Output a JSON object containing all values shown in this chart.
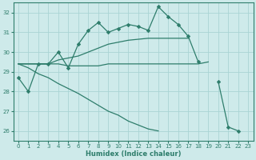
{
  "xlabel": "Humidex (Indice chaleur)",
  "x": [
    0,
    1,
    2,
    3,
    4,
    5,
    6,
    7,
    8,
    9,
    10,
    11,
    12,
    13,
    14,
    15,
    16,
    17,
    18,
    19,
    20,
    21,
    22,
    23
  ],
  "line1": [
    28.7,
    28.0,
    29.4,
    29.4,
    30.0,
    29.2,
    30.4,
    31.1,
    31.5,
    31.0,
    31.2,
    31.4,
    31.3,
    31.1,
    32.3,
    31.8,
    31.4,
    30.8,
    29.5,
    null,
    28.5,
    26.2,
    26.0,
    null
  ],
  "line2_flat": [
    29.4,
    29.4,
    29.4,
    29.4,
    29.4,
    29.3,
    29.3,
    29.3,
    29.3,
    29.4,
    29.4,
    29.4,
    29.4,
    29.4,
    29.4,
    29.4,
    29.4,
    29.4,
    29.4,
    29.5,
    null,
    null,
    null,
    null
  ],
  "line3_rising": [
    29.4,
    29.4,
    29.4,
    29.4,
    29.6,
    29.7,
    29.8,
    30.0,
    30.2,
    30.4,
    30.5,
    30.6,
    30.65,
    30.7,
    30.7,
    30.7,
    30.7,
    30.7,
    null,
    null,
    null,
    null,
    null,
    null
  ],
  "line4_diag": [
    29.4,
    29.2,
    28.9,
    28.7,
    28.4,
    28.15,
    27.9,
    27.6,
    27.3,
    27.0,
    26.8,
    26.5,
    26.3,
    26.1,
    26.0,
    null,
    null,
    null,
    null,
    null,
    null,
    null,
    null,
    null
  ],
  "line_color": "#2e7d6b",
  "bg_color": "#ceeaea",
  "grid_color": "#aad4d4",
  "ylim": [
    25.5,
    32.5
  ],
  "yticks": [
    26,
    27,
    28,
    29,
    30,
    31,
    32
  ],
  "xlim": [
    -0.5,
    23.5
  ],
  "xticks": [
    0,
    1,
    2,
    3,
    4,
    5,
    6,
    7,
    8,
    9,
    10,
    11,
    12,
    13,
    14,
    15,
    16,
    17,
    18,
    19,
    20,
    21,
    22,
    23
  ]
}
